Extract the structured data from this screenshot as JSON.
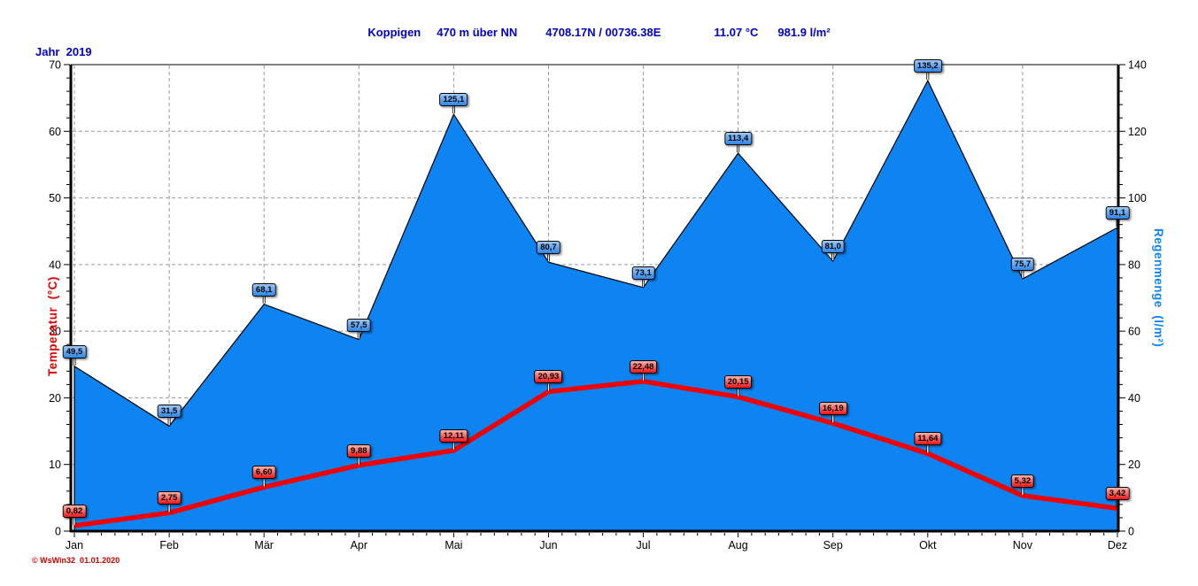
{
  "header": {
    "station": "Koppigen",
    "altitude": "470 m über NN",
    "coordinates": "4708.17N / 00736.38E",
    "mean_temperature": "11.07 °C",
    "total_rain": "981.9 l/m²"
  },
  "year_label": "Jahr  2019",
  "footer": {
    "copyright": "© WsWin32  01.01.2020"
  },
  "colors": {
    "header_text": "#0000cc",
    "rain_fill": "#0d84f2",
    "temp_line": "#f00000",
    "grid": "#9a9a9a",
    "axis": "#000000"
  },
  "chart_data": {
    "type": "area",
    "title": "Koppigen Jahr 2019 — Temperatur / Regenmenge",
    "categories": [
      "Jan",
      "Feb",
      "Mär",
      "Apr",
      "Mai",
      "Jun",
      "Jul",
      "Aug",
      "Sep",
      "Okt",
      "Nov",
      "Dez"
    ],
    "series": [
      {
        "name": "Regenmenge",
        "type": "area",
        "axis": "right",
        "color": "#0d84f2",
        "values": [
          49.5,
          31.5,
          68.1,
          57.5,
          125.1,
          80.7,
          73.1,
          113.4,
          81.0,
          135.2,
          75.7,
          91.1
        ],
        "labels": [
          "49,5",
          "31,5",
          "68,1",
          "57,5",
          "125,1",
          "80,7",
          "73,1",
          "113,4",
          "81,0",
          "135,2",
          "75,7",
          "91,1"
        ]
      },
      {
        "name": "Temperatur",
        "type": "line",
        "axis": "left",
        "color": "#f00000",
        "values": [
          0.82,
          2.75,
          6.6,
          9.88,
          12.11,
          20.93,
          22.48,
          20.15,
          16.19,
          11.64,
          5.32,
          3.42
        ],
        "labels": [
          "0,82",
          "2,75",
          "6,60",
          "9,88",
          "12,11",
          "20,93",
          "22,48",
          "20,15",
          "16,19",
          "11,64",
          "5,32",
          "3,42"
        ]
      }
    ],
    "left_axis": {
      "title": "Temperatur  (°C)",
      "min": 0,
      "max": 70,
      "step": 10,
      "minor_step": 2,
      "tick_labels": [
        "0",
        "10",
        "20",
        "30",
        "40",
        "50",
        "60",
        "70"
      ]
    },
    "right_axis": {
      "title": "Regenmenge  (l/m²)",
      "min": 0,
      "max": 140,
      "step": 20,
      "minor_step": 4,
      "tick_labels": [
        "0",
        "20",
        "40",
        "60",
        "80",
        "100",
        "120",
        "140"
      ]
    },
    "grid": true,
    "legend": "none"
  }
}
